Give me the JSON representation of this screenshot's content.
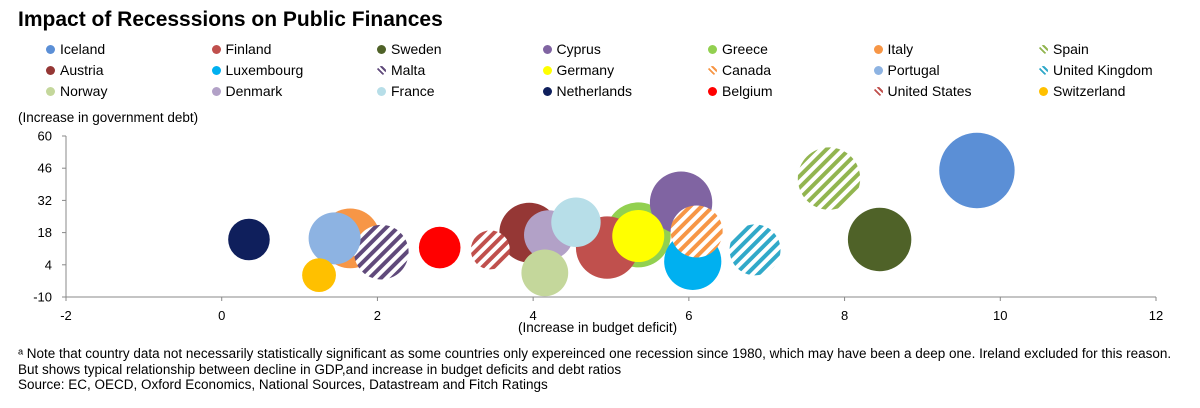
{
  "title": "Impact of Recesssions on Public Finances",
  "chart_data": {
    "type": "bubble",
    "ylabel": "(Increase in government debt)",
    "xlabel": "(Increase in budget deficit)",
    "xlim": [
      -2,
      12
    ],
    "ylim": [
      -10,
      60
    ],
    "x_ticks": [
      -2,
      0,
      2,
      4,
      6,
      8,
      10,
      12
    ],
    "y_ticks": [
      -10,
      4,
      18,
      32,
      46,
      60
    ],
    "grid": false,
    "legend_position": "top",
    "series": [
      {
        "name": "Iceland",
        "x": 9.7,
        "y": 45,
        "color": "#5b8fd6",
        "pattern": "solid",
        "size": 1.45
      },
      {
        "name": "Finland",
        "x": 4.95,
        "y": 11.5,
        "color": "#c0504d",
        "pattern": "solid",
        "size": 1.2
      },
      {
        "name": "Sweden",
        "x": 8.45,
        "y": 15,
        "color": "#4f6228",
        "pattern": "solid",
        "size": 1.22
      },
      {
        "name": "Cyprus",
        "x": 5.9,
        "y": 31,
        "color": "#8064a2",
        "pattern": "solid",
        "size": 1.2
      },
      {
        "name": "Greece",
        "x": 5.35,
        "y": 17,
        "color": "#92d050",
        "pattern": "solid",
        "size": 1.25
      },
      {
        "name": "Italy",
        "x": 1.65,
        "y": 15.5,
        "color": "#f79646",
        "pattern": "solid",
        "size": 1.15
      },
      {
        "name": "Spain",
        "x": 7.8,
        "y": 41.5,
        "color": "#92b550",
        "pattern": "stripe",
        "size": 1.2
      },
      {
        "name": "Austria",
        "x": 3.95,
        "y": 18,
        "color": "#953735",
        "pattern": "solid",
        "size": 1.15
      },
      {
        "name": "Luxembourg",
        "x": 6.05,
        "y": 5.5,
        "color": "#00b0f0",
        "pattern": "solid",
        "size": 1.1
      },
      {
        "name": "Malta",
        "x": 2.05,
        "y": 9.5,
        "color": "#604a7b",
        "pattern": "stripe",
        "size": 1.05
      },
      {
        "name": "Germany",
        "x": 5.35,
        "y": 16.5,
        "color": "#ffff00",
        "pattern": "solid",
        "size": 1.0
      },
      {
        "name": "Canada",
        "x": 6.1,
        "y": 18.5,
        "color": "#f79646",
        "pattern": "stripe",
        "size": 1.0
      },
      {
        "name": "Portugal",
        "x": 1.45,
        "y": 15.5,
        "color": "#8db3e2",
        "pattern": "solid",
        "size": 1.0
      },
      {
        "name": "United Kingdom",
        "x": 6.85,
        "y": 10.5,
        "color": "#31a9c9",
        "pattern": "stripe",
        "size": 0.98
      },
      {
        "name": "Norway",
        "x": 4.15,
        "y": 0.5,
        "color": "#c4d79b",
        "pattern": "solid",
        "size": 0.9
      },
      {
        "name": "Denmark",
        "x": 4.2,
        "y": 17,
        "color": "#b2a1c7",
        "pattern": "solid",
        "size": 0.95
      },
      {
        "name": "France",
        "x": 4.55,
        "y": 22.5,
        "color": "#b7dee8",
        "pattern": "solid",
        "size": 0.95
      },
      {
        "name": "Netherlands",
        "x": 0.35,
        "y": 15,
        "color": "#0f1f5c",
        "pattern": "solid",
        "size": 0.8
      },
      {
        "name": "Belgium",
        "x": 2.8,
        "y": 11.5,
        "color": "#ff0000",
        "pattern": "solid",
        "size": 0.8
      },
      {
        "name": "United States",
        "x": 3.45,
        "y": 10.5,
        "color": "#c0504d",
        "pattern": "stripe",
        "size": 0.75
      },
      {
        "name": "Switzerland",
        "x": 1.25,
        "y": -0.5,
        "color": "#ffc000",
        "pattern": "solid",
        "size": 0.65
      }
    ]
  },
  "footnote": {
    "line1": "ᵃ Note that country data not necessarily statistically significant as some countries only expereinced one recession since 1980, which may have been a deep one. Ireland excluded for this reason. But shows typical relationship between decline in GDP,and increase in budget deficits and debt ratios",
    "source": "Source: EC, OECD, Oxford Economics, National Sources, Datastream and Fitch Ratings"
  }
}
